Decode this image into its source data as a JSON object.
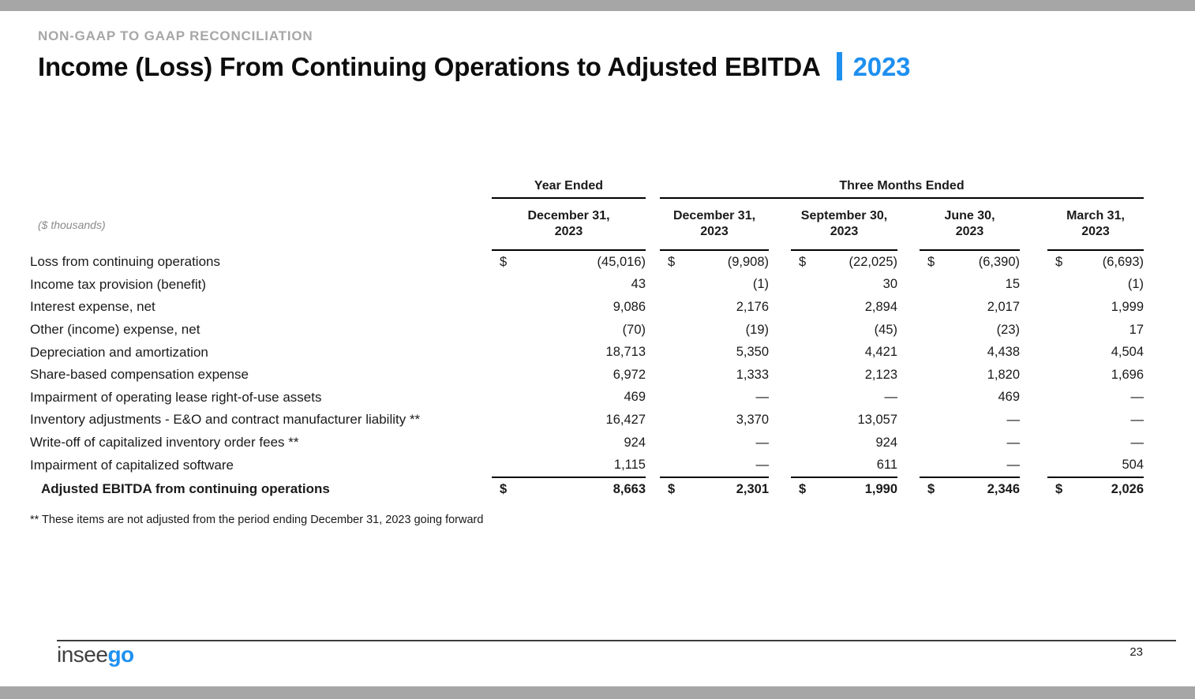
{
  "header": {
    "eyebrow": "NON-GAAP TO GAAP RECONCILIATION",
    "title": "Income (Loss) From Continuing Operations to Adjusted EBITDA",
    "year": "2023"
  },
  "table": {
    "units_note": "($ thousands)",
    "col_groups": [
      {
        "label": "Year Ended"
      },
      {
        "label": "Three Months Ended"
      }
    ],
    "columns": [
      {
        "line1": "December 31,",
        "line2": "2023"
      },
      {
        "line1": "December 31,",
        "line2": "2023"
      },
      {
        "line1": "September 30,",
        "line2": "2023"
      },
      {
        "line1": "June 30,",
        "line2": "2023"
      },
      {
        "line1": "March 31,",
        "line2": "2023"
      }
    ],
    "currency_symbol": "$",
    "rows": [
      {
        "label": "Loss from continuing operations",
        "dollar": "$",
        "values": [
          "(45,016)",
          "(9,908)",
          "(22,025)",
          "(6,390)",
          "(6,693)"
        ]
      },
      {
        "label": "Income tax provision (benefit)",
        "values": [
          "43",
          "(1)",
          "30",
          "15",
          "(1)"
        ]
      },
      {
        "label": "Interest expense, net",
        "values": [
          "9,086",
          "2,176",
          "2,894",
          "2,017",
          "1,999"
        ]
      },
      {
        "label": "Other (income) expense, net",
        "values": [
          "(70)",
          "(19)",
          "(45)",
          "(23)",
          "17"
        ]
      },
      {
        "label": "Depreciation and amortization",
        "values": [
          "18,713",
          "5,350",
          "4,421",
          "4,438",
          "4,504"
        ]
      },
      {
        "label": "Share-based compensation expense",
        "values": [
          "6,972",
          "1,333",
          "2,123",
          "1,820",
          "1,696"
        ]
      },
      {
        "label": "Impairment of operating lease right-of-use assets",
        "values": [
          "469",
          "—",
          "—",
          "469",
          "—"
        ]
      },
      {
        "label": "Inventory adjustments - E&O and contract manufacturer liability **",
        "values": [
          "16,427",
          "3,370",
          "13,057",
          "—",
          "—"
        ]
      },
      {
        "label": "Write-off of capitalized inventory order fees **",
        "values": [
          "924",
          "—",
          "924",
          "—",
          "—"
        ]
      },
      {
        "label": "Impairment of capitalized software",
        "values": [
          "1,115",
          "—",
          "611",
          "—",
          "504"
        ]
      }
    ],
    "total_row": {
      "label": "Adjusted EBITDA from continuing operations",
      "dollar": "$",
      "values": [
        "8,663",
        "2,301",
        "1,990",
        "2,346",
        "2,026"
      ]
    }
  },
  "footnote": "** These items are not adjusted from the period ending December 31, 2023 going forward",
  "footer": {
    "logo_prefix": "insee",
    "logo_suffix": "go",
    "page_number": "23"
  },
  "colors": {
    "accent_blue": "#1e90f0",
    "bar_gray": "#a6a6a6",
    "eyebrow_gray": "#a7a7a7",
    "logo_dark": "#404040"
  }
}
